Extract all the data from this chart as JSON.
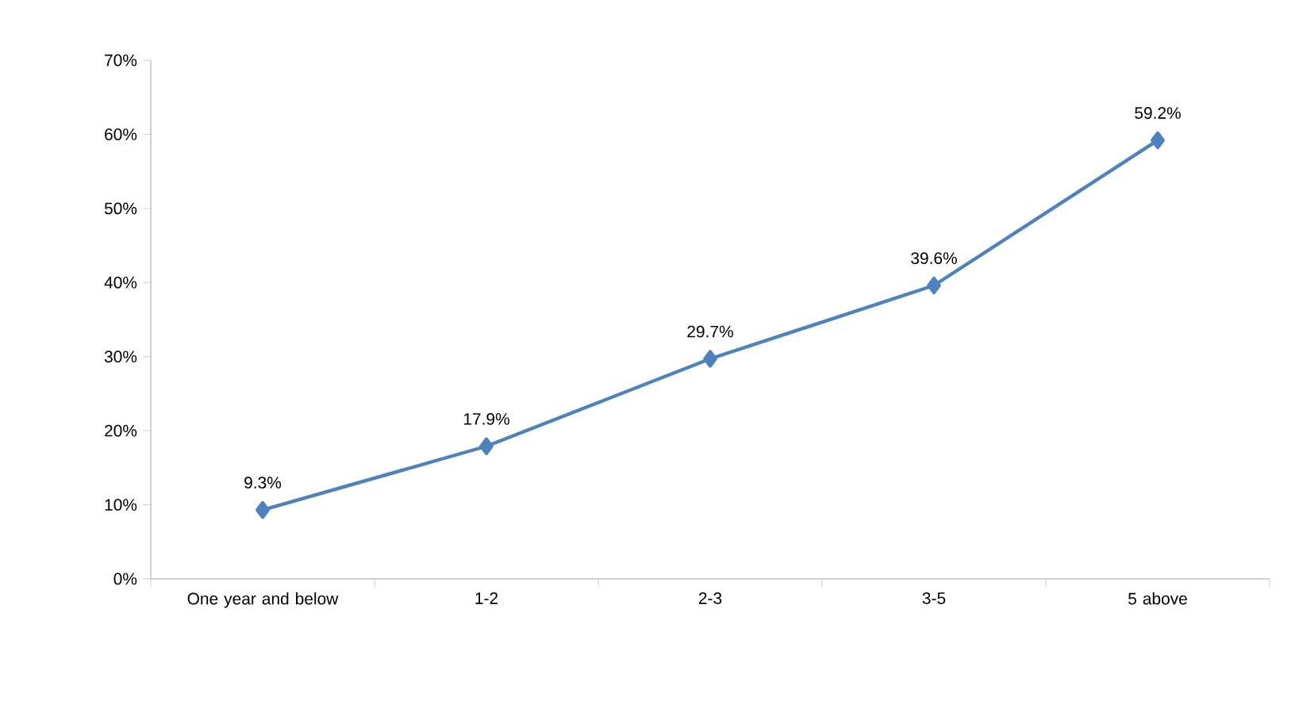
{
  "chart_data": {
    "type": "line",
    "categories": [
      "One year and below",
      "1-2",
      "2-3",
      "3-5",
      "5 above"
    ],
    "series": [
      {
        "color": "#4f81bd",
        "values": [
          9.3,
          17.9,
          29.7,
          39.6,
          59.2
        ],
        "value_labels": [
          "9.3%",
          "17.9%",
          "29.7%",
          "39.6%",
          "59.2%"
        ]
      }
    ],
    "ylim": [
      0,
      70
    ],
    "yticks": [
      {
        "value": 0,
        "label": "0%"
      },
      {
        "value": 10,
        "label": "10%"
      },
      {
        "value": 20,
        "label": "20%"
      },
      {
        "value": 30,
        "label": "30%"
      },
      {
        "value": 40,
        "label": "40%"
      },
      {
        "value": 50,
        "label": "50%"
      },
      {
        "value": 60,
        "label": "60%"
      },
      {
        "value": 70,
        "label": "70%"
      }
    ],
    "grid": false,
    "marker": "diamond",
    "line_style": "solid"
  }
}
